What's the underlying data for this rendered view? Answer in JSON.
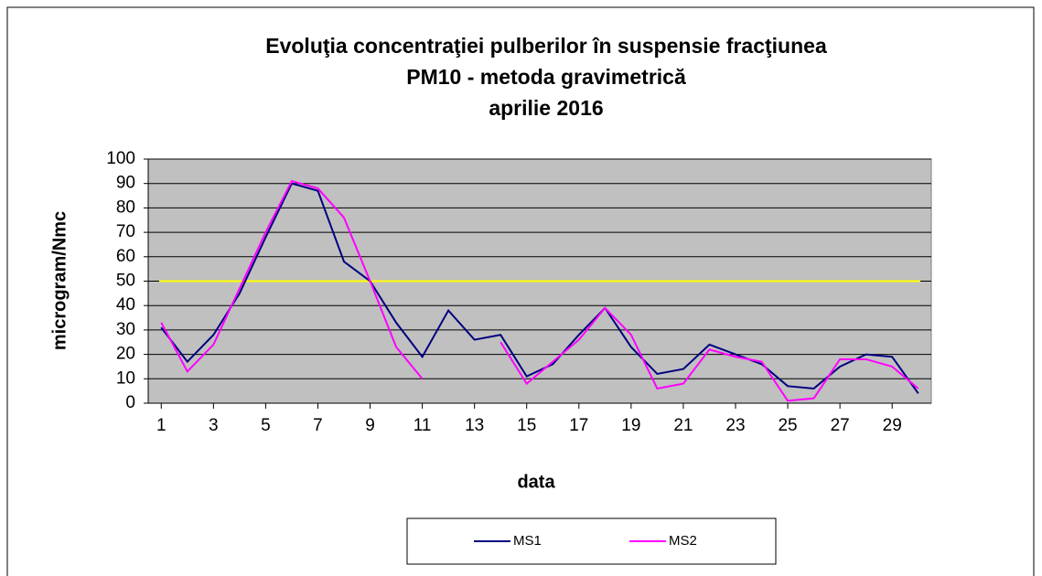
{
  "chart_data": {
    "type": "line",
    "title": [
      "Evoluţia concentraţiei pulberilor în suspensie fracţiunea",
      "PM10 - metoda gravimetrică",
      "aprilie 2016"
    ],
    "x_label": "data",
    "y_label": "microgram/Nmc",
    "x": [
      1,
      2,
      3,
      4,
      5,
      6,
      7,
      8,
      9,
      10,
      11,
      12,
      13,
      14,
      15,
      16,
      17,
      18,
      19,
      20,
      21,
      22,
      23,
      24,
      25,
      26,
      27,
      28,
      29,
      30
    ],
    "xlim": [
      0.5,
      30.5
    ],
    "xticks": [
      1,
      3,
      5,
      7,
      9,
      11,
      13,
      15,
      17,
      19,
      21,
      23,
      25,
      27,
      29
    ],
    "ylim": [
      0,
      100
    ],
    "yticks": [
      0,
      10,
      20,
      30,
      40,
      50,
      60,
      70,
      80,
      90,
      100
    ],
    "grid": true,
    "reference_line": {
      "value": 50,
      "color": "#ffff00"
    },
    "series": [
      {
        "name": "MS1",
        "color": "#000080",
        "values": [
          31,
          17,
          28,
          45,
          68,
          90,
          87,
          58,
          50,
          33,
          19,
          38,
          26,
          28,
          11,
          16,
          28,
          39,
          23,
          12,
          14,
          24,
          20,
          16,
          7,
          6,
          15,
          20,
          19,
          4
        ]
      },
      {
        "name": "MS2",
        "color": "#ff00ff",
        "values": [
          33,
          13,
          24,
          47,
          70,
          91,
          88,
          76,
          50,
          23,
          10,
          null,
          null,
          25,
          8,
          17,
          26,
          39,
          28,
          6,
          8,
          22,
          19,
          17,
          1,
          2,
          18,
          18,
          15,
          6
        ]
      }
    ],
    "legend": "bottom"
  }
}
